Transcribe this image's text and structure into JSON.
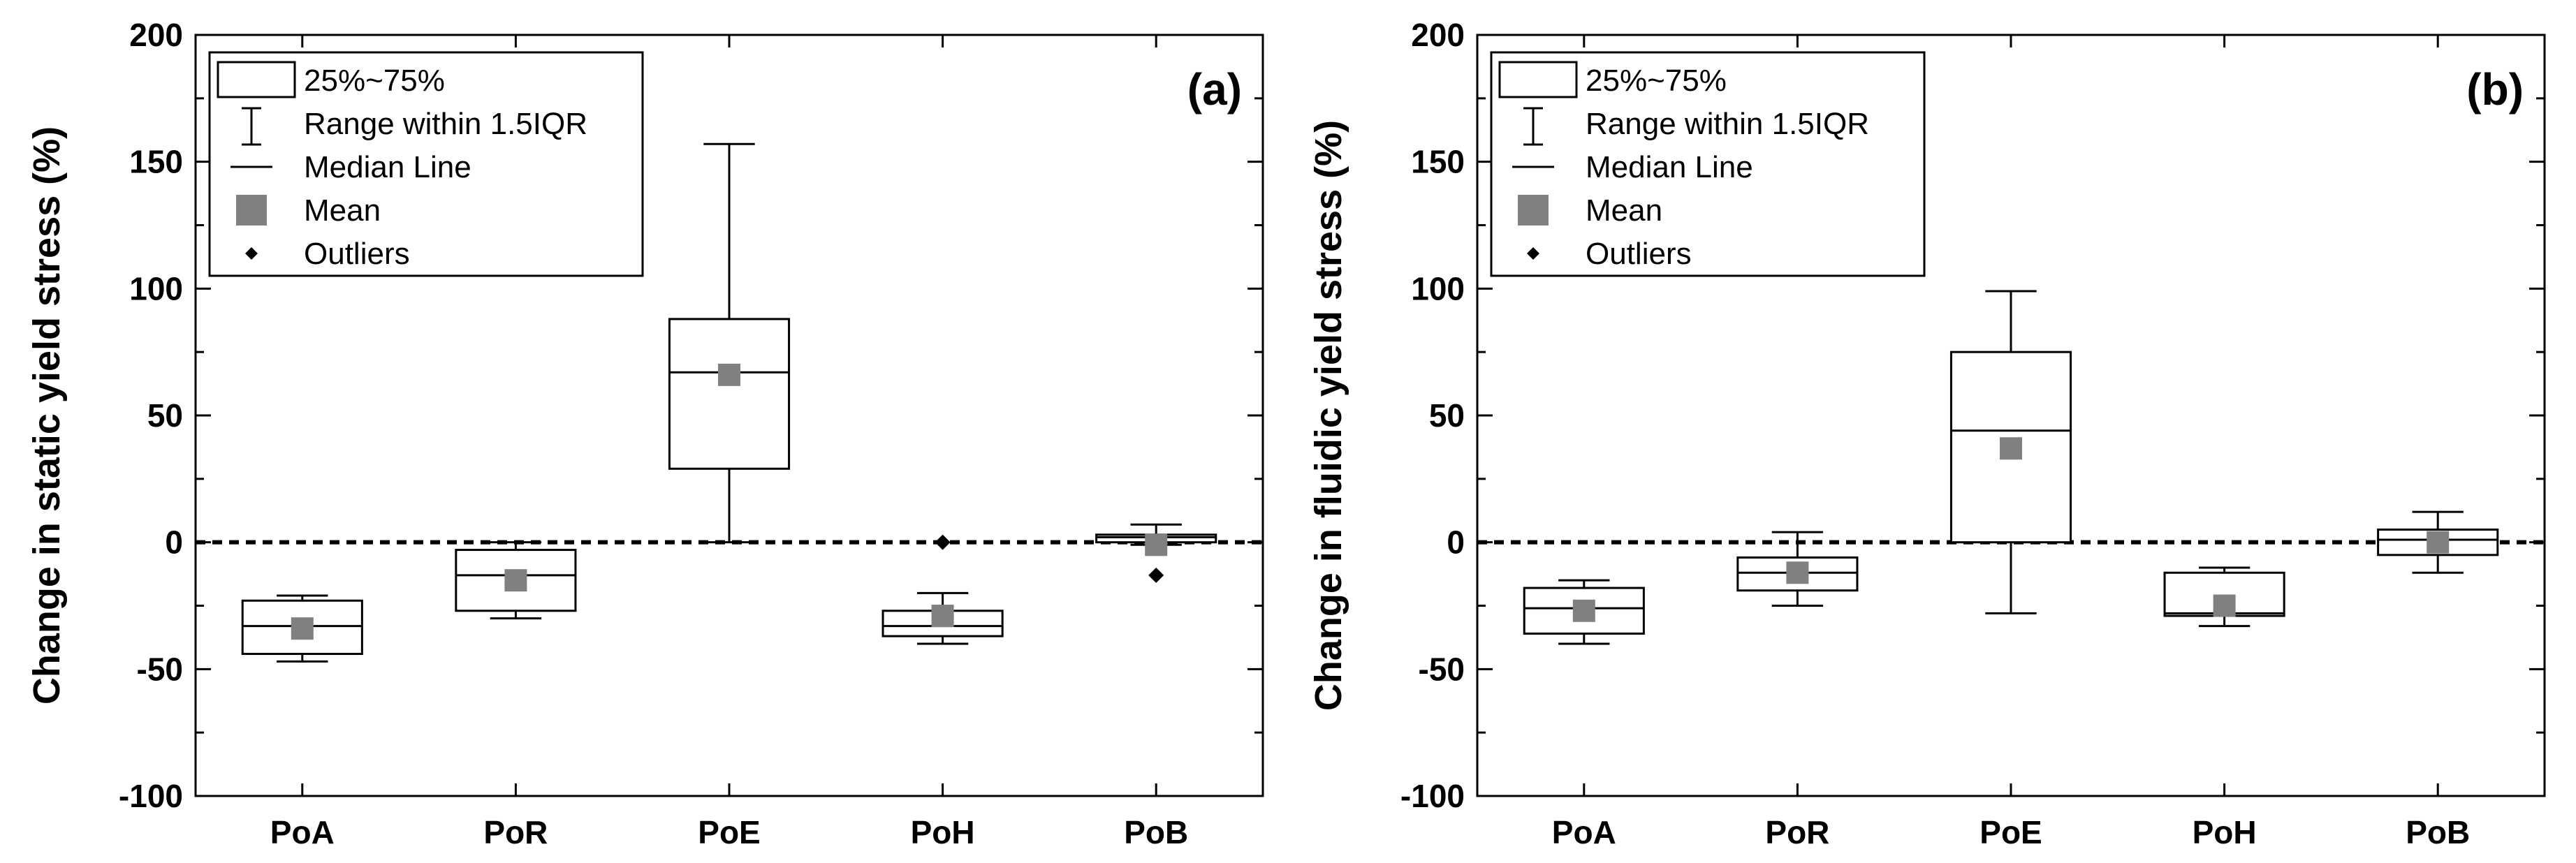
{
  "chart_data": [
    {
      "type": "box",
      "panel_label": "(a)",
      "ylabel": "Change in static yield stress (%)",
      "xlabel": "",
      "ylim": [
        -100,
        200
      ],
      "yticks": [
        -100,
        -50,
        0,
        50,
        100,
        150,
        200
      ],
      "ytick_labels": [
        "-100",
        "-50",
        "0",
        "50",
        "100",
        "150",
        "200"
      ],
      "categories": [
        "PoA",
        "PoR",
        "PoE",
        "PoH",
        "PoB"
      ],
      "reference_line": 0,
      "boxes": [
        {
          "q1": -44,
          "median": -33,
          "q3": -23,
          "whisker_low": -47,
          "whisker_high": -21,
          "mean": -34,
          "outliers": []
        },
        {
          "q1": -27,
          "median": -13,
          "q3": -3,
          "whisker_low": -30,
          "whisker_high": 0,
          "mean": -15,
          "outliers": []
        },
        {
          "q1": 29,
          "median": 67,
          "q3": 88,
          "whisker_low": 0,
          "whisker_high": 157,
          "mean": 66,
          "outliers": []
        },
        {
          "q1": -37,
          "median": -33,
          "q3": -27,
          "whisker_low": -40,
          "whisker_high": -20,
          "mean": -29,
          "outliers": [
            0
          ]
        },
        {
          "q1": 0,
          "median": 2,
          "q3": 3,
          "whisker_low": -1,
          "whisker_high": 7,
          "mean": -1,
          "outliers": [
            -13
          ]
        }
      ],
      "legend": {
        "position": "top-left",
        "entries": [
          "25%~75%",
          "Range within 1.5IQR",
          "Median Line",
          "Mean",
          "Outliers"
        ]
      }
    },
    {
      "type": "box",
      "panel_label": "(b)",
      "ylabel": "Change in fluidic yield stress (%)",
      "xlabel": "",
      "ylim": [
        -100,
        200
      ],
      "yticks": [
        -100,
        -50,
        0,
        50,
        100,
        150,
        200
      ],
      "ytick_labels": [
        "-100",
        "-50",
        "0",
        "50",
        "100",
        "150",
        "200"
      ],
      "categories": [
        "PoA",
        "PoR",
        "PoE",
        "PoH",
        "PoB"
      ],
      "reference_line": 0,
      "boxes": [
        {
          "q1": -36,
          "median": -26,
          "q3": -18,
          "whisker_low": -40,
          "whisker_high": -15,
          "mean": -27,
          "outliers": []
        },
        {
          "q1": -19,
          "median": -12,
          "q3": -6,
          "whisker_low": -25,
          "whisker_high": 4,
          "mean": -12,
          "outliers": []
        },
        {
          "q1": 0,
          "median": 44,
          "q3": 75,
          "whisker_low": -28,
          "whisker_high": 99,
          "mean": 37,
          "outliers": []
        },
        {
          "q1": -29,
          "median": -28,
          "q3": -12,
          "whisker_low": -33,
          "whisker_high": -10,
          "mean": -25,
          "outliers": []
        },
        {
          "q1": -5,
          "median": 1,
          "q3": 5,
          "whisker_low": -12,
          "whisker_high": 12,
          "mean": 0,
          "outliers": []
        }
      ],
      "legend": {
        "position": "top-left",
        "entries": [
          "25%~75%",
          "Range within 1.5IQR",
          "Median Line",
          "Mean",
          "Outliers"
        ]
      }
    }
  ],
  "colors": {
    "box_stroke": "#000000",
    "box_fill": "#ffffff",
    "mean_marker": "#808080",
    "outlier_marker": "#000000",
    "reference_line": "#000000"
  }
}
